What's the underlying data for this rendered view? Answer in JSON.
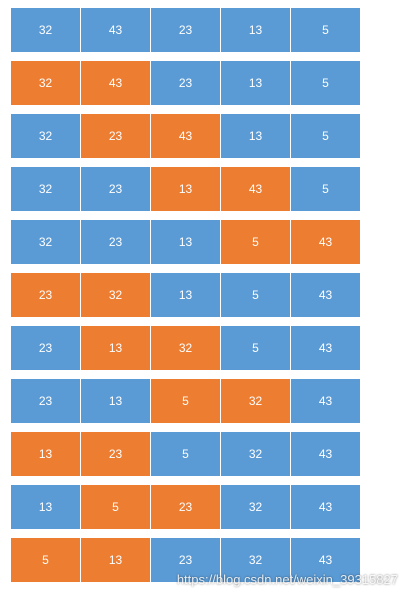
{
  "colors": {
    "normal": "#5b9bd5",
    "highlight": "#ed7d31",
    "text": "#ffffff"
  },
  "rows": [
    {
      "values": [
        32,
        43,
        23,
        13,
        5
      ],
      "highlight": []
    },
    {
      "values": [
        32,
        43,
        23,
        13,
        5
      ],
      "highlight": [
        0,
        1
      ]
    },
    {
      "values": [
        32,
        23,
        43,
        13,
        5
      ],
      "highlight": [
        1,
        2
      ]
    },
    {
      "values": [
        32,
        23,
        13,
        43,
        5
      ],
      "highlight": [
        2,
        3
      ]
    },
    {
      "values": [
        32,
        23,
        13,
        5,
        43
      ],
      "highlight": [
        3,
        4
      ]
    },
    {
      "values": [
        23,
        32,
        13,
        5,
        43
      ],
      "highlight": [
        0,
        1
      ]
    },
    {
      "values": [
        23,
        13,
        32,
        5,
        43
      ],
      "highlight": [
        1,
        2
      ]
    },
    {
      "values": [
        23,
        13,
        5,
        32,
        43
      ],
      "highlight": [
        2,
        3
      ]
    },
    {
      "values": [
        13,
        23,
        5,
        32,
        43
      ],
      "highlight": [
        0,
        1
      ]
    },
    {
      "values": [
        13,
        5,
        23,
        32,
        43
      ],
      "highlight": [
        1,
        2
      ]
    },
    {
      "values": [
        5,
        13,
        23,
        32,
        43
      ],
      "highlight": [
        0,
        1
      ]
    }
  ],
  "watermark": "https://blog.csdn.net/weixin_39315827"
}
